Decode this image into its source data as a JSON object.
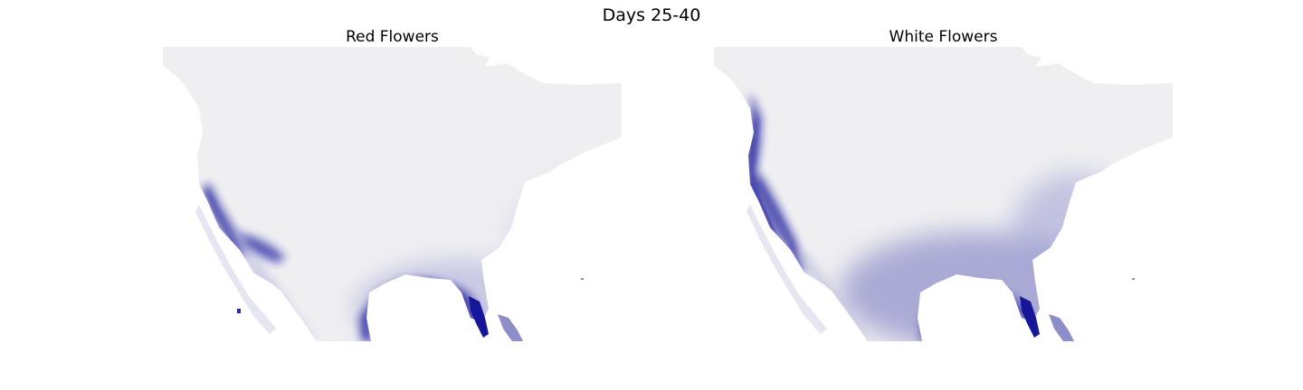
{
  "figure": {
    "title": "Days 25-40",
    "colors": {
      "land": "#efeff2",
      "ocean": "#ffffff",
      "high": "#16169a",
      "mid": "#5b5bb8",
      "low": "#b9b9de"
    }
  },
  "panels": [
    {
      "id": "red",
      "title": "Red Flowers"
    },
    {
      "id": "white",
      "title": "White Flowers"
    }
  ]
}
